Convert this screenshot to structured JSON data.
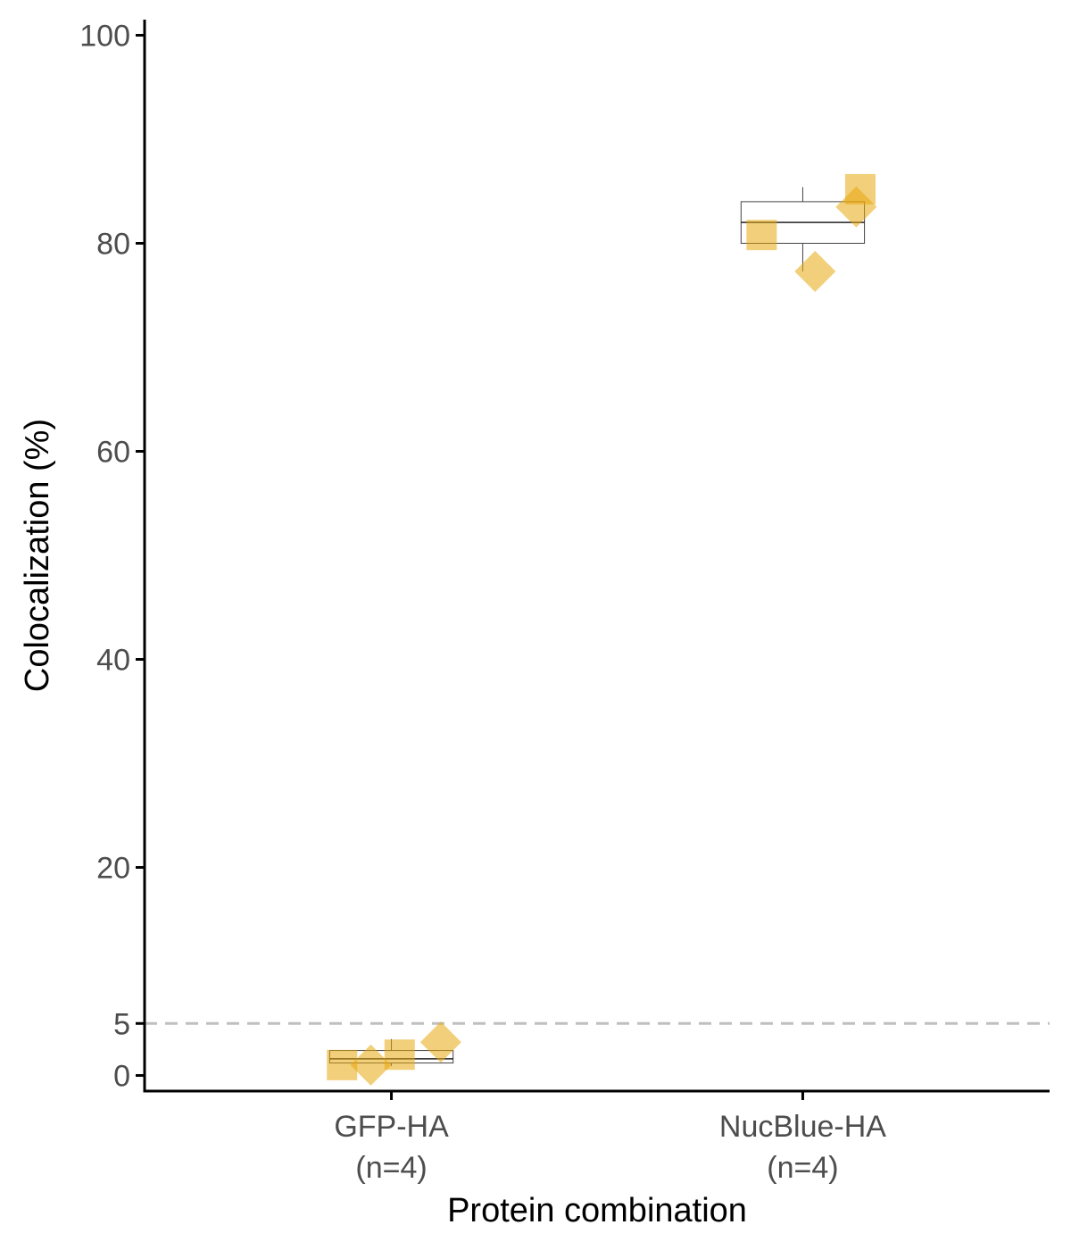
{
  "chart_data": {
    "type": "box",
    "xlabel": "Protein combination",
    "ylabel": "Colocalization (%)",
    "ylim": [
      -1.5,
      101.5
    ],
    "yticks": [
      0,
      5,
      20,
      40,
      60,
      80,
      100
    ],
    "reference_line": {
      "y": 5,
      "style": "dashed",
      "color": "#bfbfbf"
    },
    "grid": false,
    "point_color": "#e8a70c",
    "point_opacity": 0.55,
    "categories": [
      {
        "label": "GFP-HA",
        "n_label": "(n=4)"
      },
      {
        "label": "NucBlue-HA",
        "n_label": "(n=4)"
      }
    ],
    "boxes": [
      {
        "category": "GFP-HA",
        "q1": 1.2,
        "median": 1.6,
        "q3": 2.4,
        "whisker_low": 0.9,
        "whisker_high": 3.5
      },
      {
        "category": "NucBlue-HA",
        "q1": 80.0,
        "median": 82.0,
        "q3": 84.0,
        "whisker_low": 77.3,
        "whisker_high": 85.4
      }
    ],
    "points": [
      {
        "category": "GFP-HA",
        "x_offset": -0.12,
        "y": 1.0,
        "shape": "square"
      },
      {
        "category": "GFP-HA",
        "x_offset": 0.02,
        "y": 2.0,
        "shape": "square"
      },
      {
        "category": "GFP-HA",
        "x_offset": -0.05,
        "y": 1.0,
        "shape": "diamond"
      },
      {
        "category": "GFP-HA",
        "x_offset": 0.12,
        "y": 3.2,
        "shape": "diamond"
      },
      {
        "category": "NucBlue-HA",
        "x_offset": -0.1,
        "y": 80.8,
        "shape": "square"
      },
      {
        "category": "NucBlue-HA",
        "x_offset": 0.14,
        "y": 85.2,
        "shape": "square"
      },
      {
        "category": "NucBlue-HA",
        "x_offset": 0.03,
        "y": 77.3,
        "shape": "diamond"
      },
      {
        "category": "NucBlue-HA",
        "x_offset": 0.13,
        "y": 83.5,
        "shape": "diamond"
      }
    ]
  }
}
